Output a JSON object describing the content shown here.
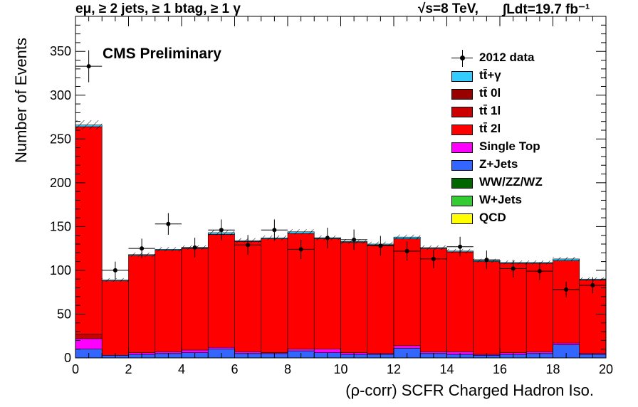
{
  "header": {
    "channel": "eμ, ≥ 2 jets, ≥ 1 btag, ≥ 1 γ",
    "energy": "√s=8 TeV,",
    "lumi": "∫Ldt=19.7 fb⁻¹"
  },
  "label_cms": "CMS Preliminary",
  "colors": {
    "ttgamma": "#33ccff",
    "tt0l": "#990000",
    "tt1l": "#cc0000",
    "tt2l": "#ff0000",
    "single_top": "#ff00ff",
    "zjets": "#3366ff",
    "diboson": "#006600",
    "wjets": "#33cc33",
    "qcd": "#ffff00",
    "data": "#000000"
  },
  "chart_data": {
    "type": "bar",
    "stacked": true,
    "xlabel": "(ρ-corr) SCFR Charged Hadron Iso.",
    "ylabel": "Number of Events",
    "xlim": [
      0,
      20
    ],
    "ylim": [
      0,
      390
    ],
    "bin_edges": [
      0,
      1,
      2,
      3,
      4,
      5,
      6,
      7,
      8,
      9,
      10,
      11,
      12,
      13,
      14,
      15,
      16,
      17,
      18,
      19,
      20
    ],
    "x_ticks": [
      0,
      2,
      4,
      6,
      8,
      10,
      12,
      14,
      16,
      18,
      20
    ],
    "y_ticks": [
      0,
      50,
      100,
      150,
      200,
      250,
      300,
      350
    ],
    "legend": [
      {
        "label": "2012 data",
        "key": "data",
        "kind": "marker"
      },
      {
        "label": "tt̄+γ",
        "key": "ttgamma",
        "kind": "box"
      },
      {
        "label": "tt̄ 0l",
        "key": "tt0l",
        "kind": "box"
      },
      {
        "label": "tt̄ 1l",
        "key": "tt1l",
        "kind": "box"
      },
      {
        "label": "tt̄ 2l",
        "key": "tt2l",
        "kind": "box"
      },
      {
        "label": "Single Top",
        "key": "single_top",
        "kind": "box"
      },
      {
        "label": "Z+Jets",
        "key": "zjets",
        "kind": "box"
      },
      {
        "label": "WW/ZZ/WZ",
        "key": "diboson",
        "kind": "box"
      },
      {
        "label": "W+Jets",
        "key": "wjets",
        "kind": "box"
      },
      {
        "label": "QCD",
        "key": "qcd",
        "kind": "box"
      }
    ],
    "stack_order": [
      "zjets",
      "single_top",
      "tt1l",
      "tt2l",
      "ttgamma"
    ],
    "series": [
      {
        "name": "Z+Jets",
        "key": "zjets",
        "values": [
          10,
          3,
          4,
          5,
          6,
          10,
          5,
          5,
          8,
          6,
          4,
          4,
          11,
          5,
          4,
          3,
          4,
          5,
          15,
          4
        ]
      },
      {
        "name": "Single Top",
        "key": "single_top",
        "values": [
          12,
          0,
          2,
          2,
          3,
          2,
          2,
          1,
          2,
          4,
          2,
          1,
          3,
          2,
          3,
          1,
          2,
          2,
          2,
          1
        ]
      },
      {
        "name": "tt̄ 1l",
        "key": "tt1l",
        "values": [
          5,
          0,
          0,
          0,
          0,
          0,
          0,
          0,
          0,
          0,
          0,
          0,
          0,
          0,
          0,
          0,
          0,
          0,
          0,
          0
        ]
      },
      {
        "name": "tt̄ 2l",
        "key": "tt2l",
        "values": [
          237,
          85,
          111,
          116,
          116,
          129,
          126,
          130,
          132,
          126,
          126,
          124,
          122,
          118,
          114,
          106,
          102,
          101,
          94,
          84
        ]
      },
      {
        "name": "tt̄+γ",
        "key": "ttgamma",
        "values": [
          2,
          1,
          1,
          1,
          1,
          2,
          1,
          1,
          2,
          1,
          1,
          1,
          2,
          1,
          1,
          1,
          1,
          1,
          2,
          1
        ]
      }
    ],
    "mc_total": [
      266,
      89,
      118,
      124,
      126,
      143,
      134,
      137,
      144,
      137,
      133,
      130,
      138,
      126,
      122,
      111,
      109,
      109,
      113,
      90
    ],
    "data": {
      "x": [
        0.5,
        1.5,
        2.5,
        3.5,
        4.5,
        5.5,
        6.5,
        7.5,
        8.5,
        9.5,
        10.5,
        11.5,
        12.5,
        13.5,
        14.5,
        15.5,
        16.5,
        17.5,
        18.5,
        19.5
      ],
      "y": [
        333,
        100,
        125,
        153,
        126,
        146,
        129,
        146,
        124,
        137,
        135,
        128,
        122,
        113,
        127,
        112,
        102,
        99,
        78,
        83
      ]
    }
  }
}
